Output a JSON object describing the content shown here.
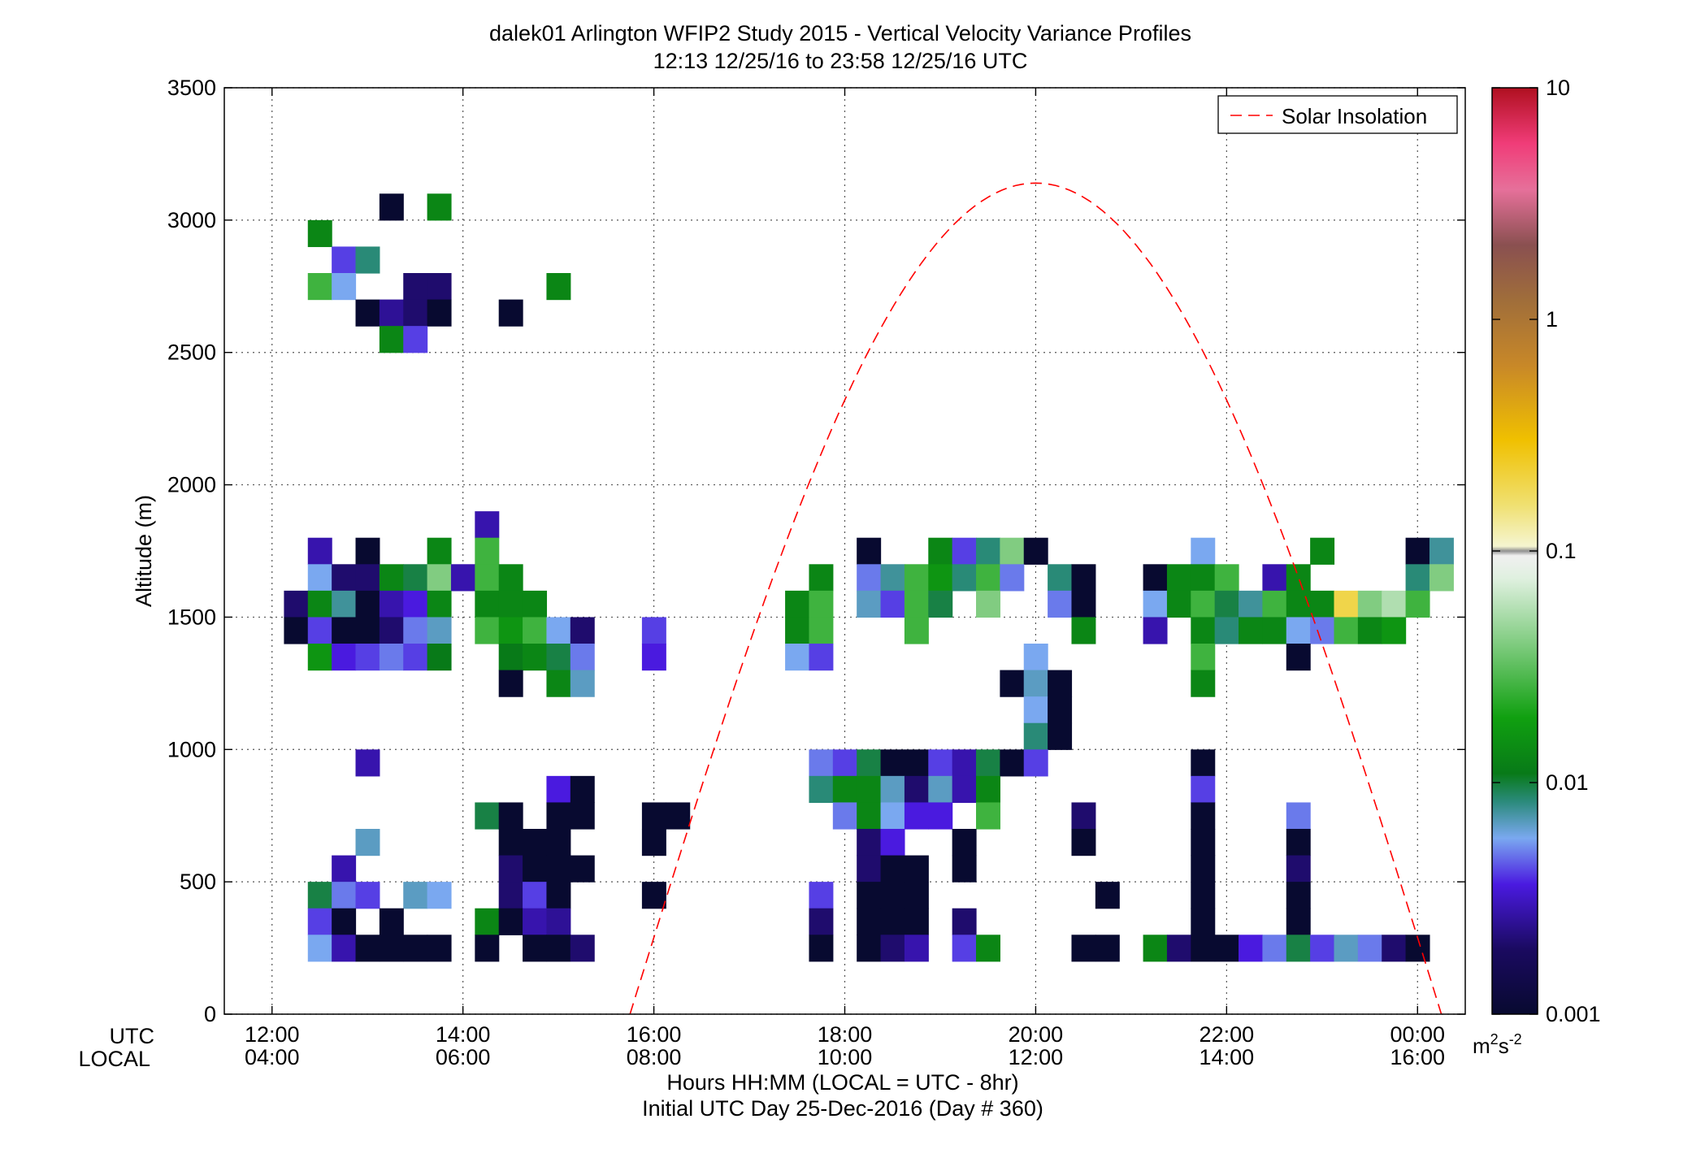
{
  "chart_data": {
    "type": "heatmap",
    "title": "dalek01 Arlington WFIP2 Study 2015 - Vertical Velocity Variance Profiles",
    "subtitle": "12:13 12/25/16 to 23:58 12/25/16  UTC",
    "xlabel": "Hours HH:MM  (LOCAL = UTC - 8hr)",
    "xlabel2": "Initial UTC Day 25-Dec-2016 (Day # 360)",
    "ylabel": "Altitude (m)",
    "row_label_utc": "UTC",
    "row_label_local": "LOCAL",
    "xlim": [
      11.5,
      24.5
    ],
    "ylim": [
      0,
      3500
    ],
    "grid": true,
    "x_ticks": [
      {
        "hour": 12,
        "utc": "12:00",
        "local": "04:00"
      },
      {
        "hour": 14,
        "utc": "14:00",
        "local": "06:00"
      },
      {
        "hour": 16,
        "utc": "16:00",
        "local": "08:00"
      },
      {
        "hour": 18,
        "utc": "18:00",
        "local": "10:00"
      },
      {
        "hour": 20,
        "utc": "20:00",
        "local": "12:00"
      },
      {
        "hour": 22,
        "utc": "22:00",
        "local": "14:00"
      },
      {
        "hour": 24,
        "utc": "00:00",
        "local": "16:00"
      }
    ],
    "y_ticks": [
      0,
      500,
      1000,
      1500,
      2000,
      2500,
      3000,
      3500
    ],
    "colorbar": {
      "scale": "log",
      "range": [
        0.001,
        10
      ],
      "ticks": [
        "0.001",
        "0.01",
        "0.1",
        "1",
        "10"
      ],
      "unit": "m",
      "unit_sup1": "2",
      "unit_mid": "s",
      "unit_sup2": "-2"
    },
    "legend": {
      "placement": "top-right",
      "entry": "Solar Insolation",
      "color": "#ff0000",
      "style": "dashed"
    },
    "solar_insolation": {
      "start_hour": 15.75,
      "end_hour": 24.25,
      "peak_hour": 20.0,
      "peak_value": 3140
    },
    "bin_hours": 0.25,
    "bin_height": 100,
    "cells": [
      [
        13.25,
        3050,
        0.001
      ],
      [
        13.75,
        3050,
        0.012
      ],
      [
        12.5,
        2950,
        0.012
      ],
      [
        12.75,
        2850,
        0.003
      ],
      [
        13.0,
        2850,
        0.008
      ],
      [
        12.5,
        2750,
        0.025
      ],
      [
        12.75,
        2750,
        0.005
      ],
      [
        13.5,
        2750,
        0.0015
      ],
      [
        13.75,
        2750,
        0.0015
      ],
      [
        15.0,
        2750,
        0.012
      ],
      [
        13.0,
        2650,
        0.001
      ],
      [
        13.25,
        2650,
        0.0018
      ],
      [
        13.5,
        2650,
        0.0015
      ],
      [
        13.75,
        2650,
        0.001
      ],
      [
        14.5,
        2650,
        0.001
      ],
      [
        13.25,
        2550,
        0.012
      ],
      [
        13.5,
        2550,
        0.003
      ],
      [
        14.25,
        1850,
        0.002
      ],
      [
        12.5,
        1750,
        0.002
      ],
      [
        13.0,
        1750,
        0.001
      ],
      [
        13.75,
        1750,
        0.012
      ],
      [
        14.25,
        1750,
        0.025
      ],
      [
        18.25,
        1750,
        0.001
      ],
      [
        19.0,
        1750,
        0.012
      ],
      [
        19.25,
        1750,
        0.003
      ],
      [
        19.5,
        1750,
        0.008
      ],
      [
        19.75,
        1750,
        0.04
      ],
      [
        20.0,
        1750,
        0.001
      ],
      [
        21.75,
        1750,
        0.005
      ],
      [
        23.0,
        1750,
        0.012
      ],
      [
        24.0,
        1750,
        0.001
      ],
      [
        24.25,
        1750,
        0.007
      ],
      [
        12.5,
        1650,
        0.005
      ],
      [
        12.75,
        1650,
        0.0015
      ],
      [
        13.0,
        1650,
        0.0015
      ],
      [
        13.25,
        1650,
        0.012
      ],
      [
        13.5,
        1650,
        0.009
      ],
      [
        13.75,
        1650,
        0.04
      ],
      [
        14.0,
        1650,
        0.002
      ],
      [
        14.25,
        1650,
        0.025
      ],
      [
        14.5,
        1650,
        0.012
      ],
      [
        17.75,
        1650,
        0.012
      ],
      [
        18.25,
        1650,
        0.004
      ],
      [
        18.5,
        1650,
        0.007
      ],
      [
        18.75,
        1650,
        0.025
      ],
      [
        19.0,
        1650,
        0.015
      ],
      [
        19.25,
        1650,
        0.008
      ],
      [
        19.5,
        1650,
        0.025
      ],
      [
        19.75,
        1650,
        0.004
      ],
      [
        20.25,
        1650,
        0.008
      ],
      [
        20.5,
        1650,
        0.001
      ],
      [
        21.25,
        1650,
        0.001
      ],
      [
        21.5,
        1650,
        0.012
      ],
      [
        21.75,
        1650,
        0.012
      ],
      [
        22.0,
        1650,
        0.025
      ],
      [
        22.5,
        1650,
        0.002
      ],
      [
        22.75,
        1650,
        0.012
      ],
      [
        24.0,
        1650,
        0.008
      ],
      [
        24.25,
        1650,
        0.04
      ],
      [
        12.25,
        1550,
        0.0015
      ],
      [
        12.5,
        1550,
        0.012
      ],
      [
        12.75,
        1550,
        0.007
      ],
      [
        13.0,
        1550,
        0.001
      ],
      [
        13.25,
        1550,
        0.002
      ],
      [
        13.5,
        1550,
        0.0025
      ],
      [
        13.75,
        1550,
        0.012
      ],
      [
        14.25,
        1550,
        0.012
      ],
      [
        14.5,
        1550,
        0.012
      ],
      [
        14.75,
        1550,
        0.012
      ],
      [
        17.5,
        1550,
        0.012
      ],
      [
        17.75,
        1550,
        0.025
      ],
      [
        18.25,
        1550,
        0.006
      ],
      [
        18.5,
        1550,
        0.003
      ],
      [
        18.75,
        1550,
        0.025
      ],
      [
        19.0,
        1550,
        0.009
      ],
      [
        19.5,
        1550,
        0.04
      ],
      [
        20.25,
        1550,
        0.004
      ],
      [
        20.5,
        1550,
        0.001
      ],
      [
        21.25,
        1550,
        0.005
      ],
      [
        21.5,
        1550,
        0.012
      ],
      [
        21.75,
        1550,
        0.025
      ],
      [
        22.0,
        1550,
        0.009
      ],
      [
        22.25,
        1550,
        0.007
      ],
      [
        22.5,
        1550,
        0.025
      ],
      [
        22.75,
        1550,
        0.012
      ],
      [
        23.0,
        1550,
        0.012
      ],
      [
        23.25,
        1550,
        0.2
      ],
      [
        23.5,
        1550,
        0.04
      ],
      [
        23.75,
        1550,
        0.06
      ],
      [
        24.0,
        1550,
        0.025
      ],
      [
        12.25,
        1450,
        0.001
      ],
      [
        12.5,
        1450,
        0.003
      ],
      [
        12.75,
        1450,
        0.001
      ],
      [
        13.0,
        1450,
        0.001
      ],
      [
        13.25,
        1450,
        0.0015
      ],
      [
        13.5,
        1450,
        0.004
      ],
      [
        13.75,
        1450,
        0.006
      ],
      [
        14.25,
        1450,
        0.025
      ],
      [
        14.5,
        1450,
        0.015
      ],
      [
        14.75,
        1450,
        0.025
      ],
      [
        15.0,
        1450,
        0.005
      ],
      [
        15.25,
        1450,
        0.0015
      ],
      [
        16.0,
        1450,
        0.003
      ],
      [
        17.5,
        1450,
        0.012
      ],
      [
        17.75,
        1450,
        0.025
      ],
      [
        18.75,
        1450,
        0.025
      ],
      [
        20.5,
        1450,
        0.012
      ],
      [
        21.25,
        1450,
        0.002
      ],
      [
        21.75,
        1450,
        0.012
      ],
      [
        22.0,
        1450,
        0.008
      ],
      [
        22.25,
        1450,
        0.012
      ],
      [
        22.5,
        1450,
        0.012
      ],
      [
        22.75,
        1450,
        0.005
      ],
      [
        23.0,
        1450,
        0.004
      ],
      [
        23.25,
        1450,
        0.025
      ],
      [
        23.5,
        1450,
        0.012
      ],
      [
        23.75,
        1450,
        0.015
      ],
      [
        12.5,
        1350,
        0.015
      ],
      [
        12.75,
        1350,
        0.0025
      ],
      [
        13.0,
        1350,
        0.003
      ],
      [
        13.25,
        1350,
        0.004
      ],
      [
        13.5,
        1350,
        0.003
      ],
      [
        13.75,
        1350,
        0.01
      ],
      [
        14.5,
        1350,
        0.01
      ],
      [
        14.75,
        1350,
        0.012
      ],
      [
        15.0,
        1350,
        0.009
      ],
      [
        15.25,
        1350,
        0.004
      ],
      [
        16.0,
        1350,
        0.0025
      ],
      [
        17.5,
        1350,
        0.005
      ],
      [
        17.75,
        1350,
        0.003
      ],
      [
        20.0,
        1350,
        0.005
      ],
      [
        21.75,
        1350,
        0.025
      ],
      [
        22.75,
        1350,
        0.001
      ],
      [
        14.5,
        1250,
        0.001
      ],
      [
        15.0,
        1250,
        0.012
      ],
      [
        15.25,
        1250,
        0.006
      ],
      [
        19.75,
        1250,
        0.001
      ],
      [
        20.0,
        1250,
        0.006
      ],
      [
        20.25,
        1250,
        0.001
      ],
      [
        21.75,
        1250,
        0.012
      ],
      [
        20.0,
        1150,
        0.005
      ],
      [
        20.25,
        1150,
        0.001
      ],
      [
        20.0,
        1050,
        0.008
      ],
      [
        20.25,
        1050,
        0.001
      ],
      [
        13.0,
        950,
        0.002
      ],
      [
        17.75,
        950,
        0.004
      ],
      [
        18.0,
        950,
        0.003
      ],
      [
        18.25,
        950,
        0.009
      ],
      [
        18.5,
        950,
        0.001
      ],
      [
        18.75,
        950,
        0.001
      ],
      [
        19.0,
        950,
        0.003
      ],
      [
        19.25,
        950,
        0.002
      ],
      [
        19.5,
        950,
        0.009
      ],
      [
        19.75,
        950,
        0.001
      ],
      [
        20.0,
        950,
        0.003
      ],
      [
        21.75,
        950,
        0.001
      ],
      [
        15.0,
        850,
        0.0025
      ],
      [
        15.25,
        850,
        0.001
      ],
      [
        17.75,
        850,
        0.008
      ],
      [
        18.0,
        850,
        0.012
      ],
      [
        18.25,
        850,
        0.012
      ],
      [
        18.5,
        850,
        0.006
      ],
      [
        18.75,
        850,
        0.0015
      ],
      [
        19.0,
        850,
        0.006
      ],
      [
        19.25,
        850,
        0.002
      ],
      [
        19.5,
        850,
        0.012
      ],
      [
        21.75,
        850,
        0.003
      ],
      [
        14.25,
        750,
        0.009
      ],
      [
        14.5,
        750,
        0.001
      ],
      [
        15.0,
        750,
        0.001
      ],
      [
        15.25,
        750,
        0.001
      ],
      [
        16.0,
        750,
        0.001
      ],
      [
        16.25,
        750,
        0.001
      ],
      [
        18.0,
        750,
        0.004
      ],
      [
        18.25,
        750,
        0.012
      ],
      [
        18.5,
        750,
        0.005
      ],
      [
        18.75,
        750,
        0.0025
      ],
      [
        19.0,
        750,
        0.0025
      ],
      [
        19.5,
        750,
        0.025
      ],
      [
        20.5,
        750,
        0.0015
      ],
      [
        21.75,
        750,
        0.001
      ],
      [
        22.75,
        750,
        0.004
      ],
      [
        13.0,
        650,
        0.006
      ],
      [
        14.5,
        650,
        0.001
      ],
      [
        14.75,
        650,
        0.001
      ],
      [
        15.0,
        650,
        0.001
      ],
      [
        16.0,
        650,
        0.001
      ],
      [
        18.25,
        650,
        0.0015
      ],
      [
        18.5,
        650,
        0.0025
      ],
      [
        19.25,
        650,
        0.001
      ],
      [
        20.5,
        650,
        0.001
      ],
      [
        21.75,
        650,
        0.001
      ],
      [
        22.75,
        650,
        0.001
      ],
      [
        12.75,
        550,
        0.002
      ],
      [
        14.5,
        550,
        0.0015
      ],
      [
        14.75,
        550,
        0.001
      ],
      [
        15.0,
        550,
        0.001
      ],
      [
        15.25,
        550,
        0.001
      ],
      [
        18.25,
        550,
        0.0015
      ],
      [
        18.5,
        550,
        0.001
      ],
      [
        18.75,
        550,
        0.001
      ],
      [
        19.25,
        550,
        0.001
      ],
      [
        21.75,
        550,
        0.001
      ],
      [
        22.75,
        550,
        0.0015
      ],
      [
        12.5,
        450,
        0.009
      ],
      [
        12.75,
        450,
        0.004
      ],
      [
        13.0,
        450,
        0.003
      ],
      [
        13.5,
        450,
        0.006
      ],
      [
        13.75,
        450,
        0.005
      ],
      [
        14.5,
        450,
        0.0015
      ],
      [
        14.75,
        450,
        0.003
      ],
      [
        15.0,
        450,
        0.001
      ],
      [
        16.0,
        450,
        0.001
      ],
      [
        17.75,
        450,
        0.003
      ],
      [
        18.25,
        450,
        0.001
      ],
      [
        18.5,
        450,
        0.001
      ],
      [
        18.75,
        450,
        0.001
      ],
      [
        20.75,
        450,
        0.001
      ],
      [
        21.75,
        450,
        0.001
      ],
      [
        22.75,
        450,
        0.001
      ],
      [
        12.5,
        350,
        0.003
      ],
      [
        12.75,
        350,
        0.001
      ],
      [
        13.25,
        350,
        0.001
      ],
      [
        14.25,
        350,
        0.012
      ],
      [
        14.5,
        350,
        0.001
      ],
      [
        14.75,
        350,
        0.002
      ],
      [
        15.0,
        350,
        0.0018
      ],
      [
        17.75,
        350,
        0.0015
      ],
      [
        18.25,
        350,
        0.001
      ],
      [
        18.5,
        350,
        0.001
      ],
      [
        18.75,
        350,
        0.001
      ],
      [
        19.25,
        350,
        0.0015
      ],
      [
        21.75,
        350,
        0.001
      ],
      [
        22.75,
        350,
        0.001
      ],
      [
        12.5,
        250,
        0.005
      ],
      [
        12.75,
        250,
        0.002
      ],
      [
        13.0,
        250,
        0.001
      ],
      [
        13.25,
        250,
        0.001
      ],
      [
        13.5,
        250,
        0.001
      ],
      [
        13.75,
        250,
        0.001
      ],
      [
        14.25,
        250,
        0.001
      ],
      [
        14.75,
        250,
        0.001
      ],
      [
        15.0,
        250,
        0.001
      ],
      [
        15.25,
        250,
        0.0015
      ],
      [
        17.75,
        250,
        0.001
      ],
      [
        18.25,
        250,
        0.001
      ],
      [
        18.5,
        250,
        0.0015
      ],
      [
        18.75,
        250,
        0.002
      ],
      [
        19.25,
        250,
        0.003
      ],
      [
        19.5,
        250,
        0.012
      ],
      [
        20.5,
        250,
        0.001
      ],
      [
        20.75,
        250,
        0.001
      ],
      [
        21.25,
        250,
        0.012
      ],
      [
        21.5,
        250,
        0.0015
      ],
      [
        21.75,
        250,
        0.001
      ],
      [
        22.0,
        250,
        0.001
      ],
      [
        22.25,
        250,
        0.0025
      ],
      [
        22.5,
        250,
        0.004
      ],
      [
        22.75,
        250,
        0.009
      ],
      [
        23.0,
        250,
        0.003
      ],
      [
        23.25,
        250,
        0.006
      ],
      [
        23.5,
        250,
        0.004
      ],
      [
        23.75,
        250,
        0.0015
      ],
      [
        24.0,
        250,
        0.001
      ]
    ]
  }
}
